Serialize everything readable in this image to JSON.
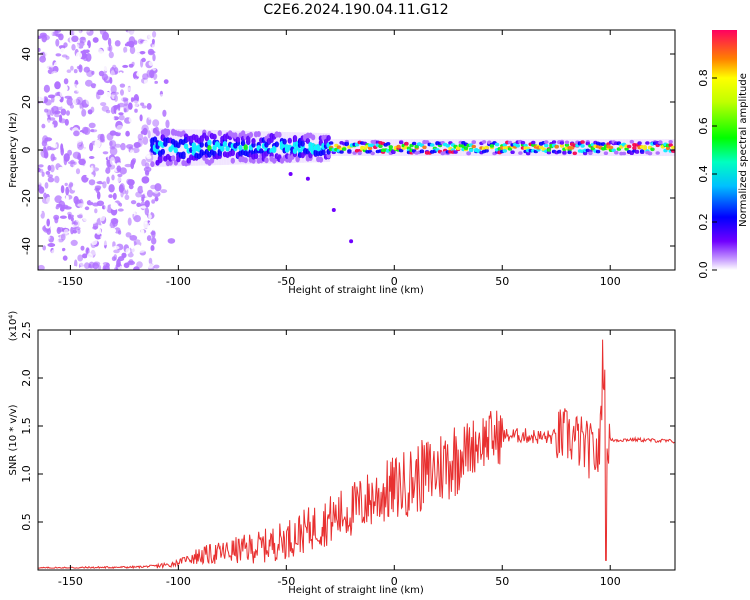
{
  "figure": {
    "title": "C2E6.2024.190.04.11.G12"
  },
  "chart_data": [
    {
      "type": "heatmap",
      "xlabel": "Height of straight line (km)",
      "ylabel": "Frequency (Hz)",
      "xlim": [
        -165,
        130
      ],
      "ylim": [
        -50,
        50
      ],
      "x_ticks": [
        -150,
        -100,
        -50,
        0,
        50,
        100
      ],
      "y_ticks": [
        -40,
        -20,
        0,
        20,
        40
      ],
      "colorbar": {
        "label": "Normalized spectral amplitude",
        "range": [
          0,
          1
        ],
        "ticks": [
          0.0,
          0.2,
          0.4,
          0.6,
          0.8
        ],
        "colors": [
          "#ffffff",
          "#b070ff",
          "#5a00ff",
          "#0000ff",
          "#00ffff",
          "#00ff00",
          "#ffff00",
          "#ff8000",
          "#ff0040"
        ]
      },
      "regions": [
        {
          "x_range": [
            -165,
            -110
          ],
          "y_range": [
            -50,
            50
          ],
          "description_level": 0.15
        },
        {
          "x_range": [
            -110,
            -30
          ],
          "center_freq": 1,
          "spread_hz": 8,
          "peak_level": 0.45
        },
        {
          "x_range": [
            -30,
            130
          ],
          "center_freq": 1,
          "spread_hz": 3,
          "peak_level": 0.9
        }
      ],
      "grid": false
    },
    {
      "type": "line",
      "xlabel": "Height of straight line (km)",
      "ylabel": "SNR (10 * v/v)",
      "y_multiplier": "(x10⁴)",
      "xlim": [
        -165,
        130
      ],
      "ylim": [
        0,
        2.5
      ],
      "x_ticks": [
        -150,
        -100,
        -50,
        0,
        50,
        100
      ],
      "y_ticks": [
        0.5,
        1.0,
        1.5,
        2.0,
        2.5
      ],
      "color": "#e83030",
      "x": [
        -165,
        -120,
        -105,
        -100,
        -95,
        -80,
        -60,
        -50,
        -40,
        -30,
        -20,
        -10,
        0,
        10,
        20,
        30,
        40,
        50,
        60,
        70,
        80,
        85,
        90,
        95,
        97,
        98,
        100,
        110,
        120,
        130
      ],
      "values": [
        0.02,
        0.03,
        0.05,
        0.08,
        0.13,
        0.18,
        0.25,
        0.32,
        0.42,
        0.52,
        0.62,
        0.75,
        0.85,
        0.95,
        1.05,
        1.2,
        1.35,
        1.4,
        1.4,
        1.38,
        1.4,
        1.35,
        1.25,
        1.2,
        2.3,
        1.3,
        1.35,
        1.36,
        1.35,
        1.34
      ],
      "grid": false
    }
  ]
}
